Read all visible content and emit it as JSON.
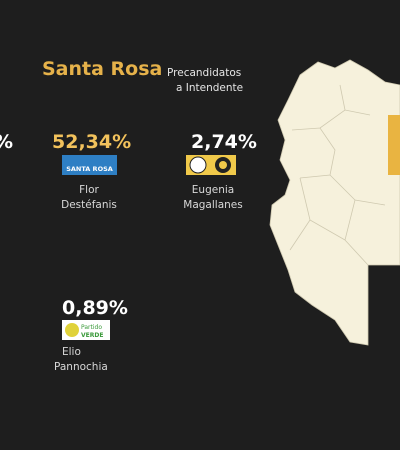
{
  "header": {
    "title": "Santa Rosa",
    "subtitle": [
      "Precandidatos",
      "a Intendente"
    ]
  },
  "cut_label": "%",
  "candidates": [
    {
      "percentage": "52,34%",
      "party": "SANTA ROSA",
      "name": [
        "Flor",
        "Destéfanis"
      ]
    },
    {
      "percentage": "2,74%",
      "name": [
        "Eugenia",
        "Magallanes"
      ]
    },
    {
      "percentage": "0,89%",
      "party": [
        "Partido",
        "VERDE"
      ],
      "name": [
        "Elio",
        "Pannochia"
      ]
    }
  ]
}
